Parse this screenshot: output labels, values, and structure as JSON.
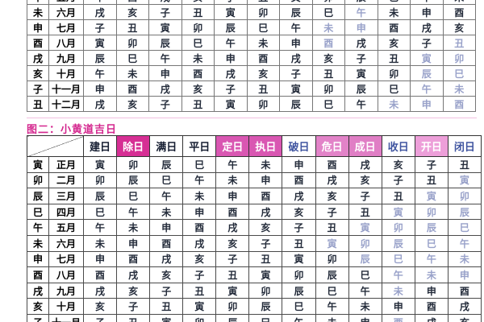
{
  "colors": {
    "dark_text": "#232b3a",
    "light_text": "#98a1c9",
    "black_text": "#000000",
    "title_magenta": "#d4278e",
    "divider_pink": "#f2bfe0",
    "header_navy": "#141c30",
    "header_blue": "#4055a0",
    "magenta_strong": "#d62f94",
    "magenta_mid": "#d957b2",
    "magenta_soft": "#e283c8",
    "magenta_light": "#ed9fd9"
  },
  "table1": {
    "rows": [
      {
        "branch": "午",
        "month": "五月",
        "cells": [
          "申",
          "酉",
          "戌",
          "亥",
          "子",
          "丑",
          "寅",
          "卯",
          "辰",
          "巳",
          "午",
          "未"
        ],
        "light": []
      },
      {
        "branch": "未",
        "month": "六月",
        "cells": [
          "戌",
          "亥",
          "子",
          "丑",
          "寅",
          "卯",
          "辰",
          "巳",
          "午",
          "未",
          "申",
          "酉"
        ],
        "light": [
          8
        ]
      },
      {
        "branch": "申",
        "month": "七月",
        "cells": [
          "子",
          "丑",
          "寅",
          "卯",
          "辰",
          "巳",
          "午",
          "未",
          "申",
          "酉",
          "戌",
          "亥"
        ],
        "light": [
          7,
          8
        ]
      },
      {
        "branch": "酉",
        "month": "八月",
        "cells": [
          "寅",
          "卯",
          "辰",
          "巳",
          "午",
          "未",
          "申",
          "酉",
          "戌",
          "亥",
          "子",
          "丑"
        ],
        "light": [
          7,
          11
        ]
      },
      {
        "branch": "戌",
        "month": "九月",
        "cells": [
          "辰",
          "巳",
          "午",
          "未",
          "申",
          "酉",
          "戌",
          "亥",
          "子",
          "丑",
          "寅",
          "卯"
        ],
        "light": [
          10,
          11
        ]
      },
      {
        "branch": "亥",
        "month": "十月",
        "cells": [
          "午",
          "未",
          "申",
          "酉",
          "戌",
          "亥",
          "子",
          "丑",
          "寅",
          "卯",
          "辰",
          "巳"
        ],
        "light": [
          10,
          11
        ]
      },
      {
        "branch": "子",
        "month": "十一月",
        "cells": [
          "申",
          "酉",
          "戌",
          "亥",
          "子",
          "丑",
          "寅",
          "卯",
          "辰",
          "巳",
          "午",
          "未"
        ],
        "light": [
          10,
          11
        ]
      },
      {
        "branch": "丑",
        "month": "十二月",
        "cells": [
          "戌",
          "亥",
          "子",
          "丑",
          "寅",
          "卯",
          "辰",
          "巳",
          "午",
          "未",
          "申",
          "酉"
        ],
        "light": [
          9,
          10,
          11
        ]
      }
    ]
  },
  "section2": {
    "title": "图二：小黄道吉日",
    "header": [
      {
        "label": "建日",
        "bg": "#ffffff",
        "fg": "#141c30"
      },
      {
        "label": "除日",
        "bg": "#d62f94",
        "fg": "#ffffff"
      },
      {
        "label": "满日",
        "bg": "#ffffff",
        "fg": "#141c30"
      },
      {
        "label": "平日",
        "bg": "#ffffff",
        "fg": "#141c30"
      },
      {
        "label": "定日",
        "bg": "#d957b2",
        "fg": "#ffffff"
      },
      {
        "label": "执日",
        "bg": "#d957b2",
        "fg": "#ffffff"
      },
      {
        "label": "破日",
        "bg": "#ffffff",
        "fg": "#4055a0"
      },
      {
        "label": "危日",
        "bg": "#e283c8",
        "fg": "#ffffff"
      },
      {
        "label": "成日",
        "bg": "#e07ec5",
        "fg": "#ffffff"
      },
      {
        "label": "收日",
        "bg": "#ffffff",
        "fg": "#4055a0"
      },
      {
        "label": "开日",
        "bg": "#ed9fd9",
        "fg": "#ffffff"
      },
      {
        "label": "闭日",
        "bg": "#ffffff",
        "fg": "#4055a0"
      }
    ],
    "rows": [
      {
        "branch": "寅",
        "month": "正月",
        "cells": [
          "寅",
          "卯",
          "辰",
          "巳",
          "午",
          "未",
          "申",
          "酉",
          "戌",
          "亥",
          "子",
          "丑"
        ],
        "light": []
      },
      {
        "branch": "卯",
        "month": "二月",
        "cells": [
          "卯",
          "辰",
          "巳",
          "午",
          "未",
          "申",
          "酉",
          "戌",
          "亥",
          "子",
          "丑",
          "寅"
        ],
        "light": [
          11
        ]
      },
      {
        "branch": "辰",
        "month": "三月",
        "cells": [
          "辰",
          "巳",
          "午",
          "未",
          "申",
          "酉",
          "戌",
          "亥",
          "子",
          "丑",
          "寅",
          "卯"
        ],
        "light": [
          10,
          11
        ]
      },
      {
        "branch": "巳",
        "month": "四月",
        "cells": [
          "巳",
          "午",
          "未",
          "申",
          "酉",
          "戌",
          "亥",
          "子",
          "丑",
          "寅",
          "卯",
          "辰"
        ],
        "light": [
          9,
          10,
          11
        ]
      },
      {
        "branch": "午",
        "month": "五月",
        "cells": [
          "午",
          "未",
          "申",
          "酉",
          "戌",
          "亥",
          "子",
          "丑",
          "寅",
          "卯",
          "辰",
          "巳"
        ],
        "light": [
          8,
          9,
          10,
          11
        ]
      },
      {
        "branch": "未",
        "month": "六月",
        "cells": [
          "未",
          "申",
          "酉",
          "戌",
          "亥",
          "子",
          "丑",
          "寅",
          "卯",
          "辰",
          "巳",
          "午"
        ],
        "light": [
          7,
          8,
          9,
          10,
          11
        ]
      },
      {
        "branch": "申",
        "month": "七月",
        "cells": [
          "申",
          "酉",
          "戌",
          "亥",
          "子",
          "丑",
          "寅",
          "卯",
          "辰",
          "巳",
          "午",
          "未"
        ],
        "light": [
          8,
          9,
          10,
          11
        ]
      },
      {
        "branch": "酉",
        "month": "八月",
        "cells": [
          "酉",
          "戌",
          "亥",
          "子",
          "丑",
          "寅",
          "卯",
          "辰",
          "巳",
          "午",
          "未",
          "申"
        ],
        "light": [
          9,
          10,
          11
        ]
      },
      {
        "branch": "戌",
        "month": "九月",
        "cells": [
          "戌",
          "亥",
          "子",
          "丑",
          "寅",
          "卯",
          "辰",
          "巳",
          "午",
          "未",
          "申",
          "酉"
        ],
        "light": [
          9
        ]
      },
      {
        "branch": "亥",
        "month": "十月",
        "cells": [
          "亥",
          "子",
          "丑",
          "寅",
          "卯",
          "辰",
          "巳",
          "午",
          "未",
          "申",
          "酉",
          "戌"
        ],
        "light": []
      },
      {
        "branch": "子",
        "month": "十一月",
        "cells": [
          "子",
          "丑",
          "寅",
          "卯",
          "辰",
          "巳",
          "午",
          "未",
          "申",
          "酉",
          "戌",
          "亥"
        ],
        "light": [
          9
        ]
      }
    ]
  }
}
